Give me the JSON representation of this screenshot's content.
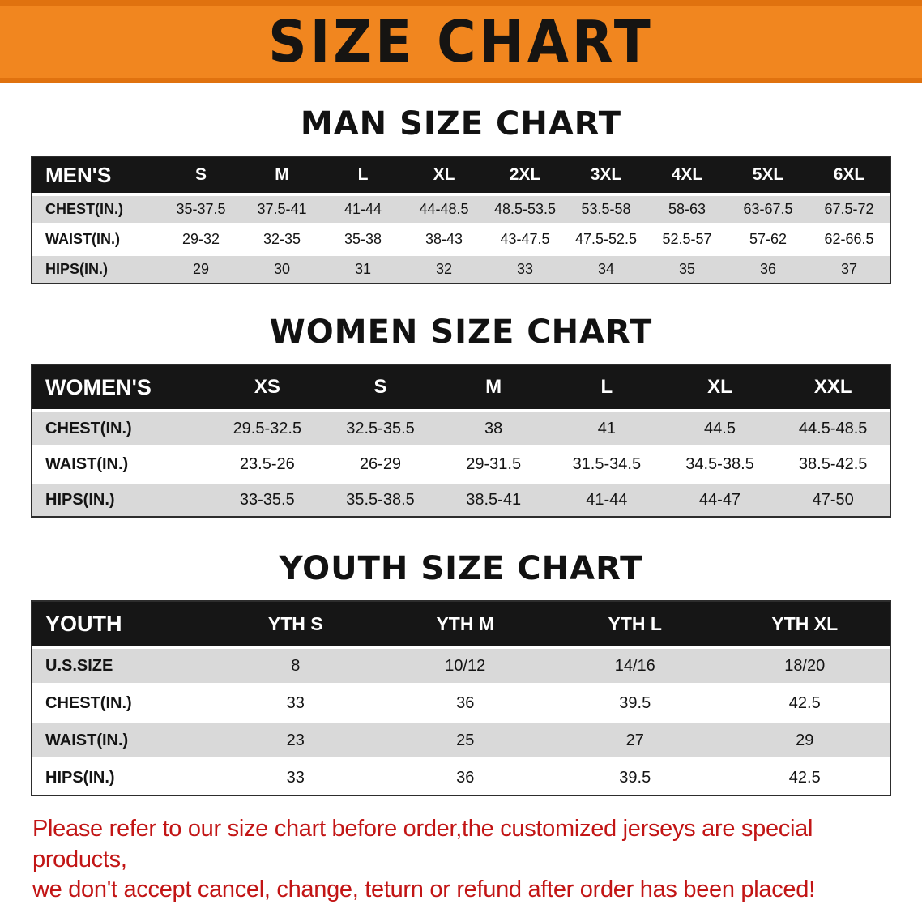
{
  "banner": {
    "title": "SIZE CHART"
  },
  "colors": {
    "banner-bg": "#f1861f",
    "banner-edge": "#e0720f",
    "header-bg": "#161616",
    "row-shade": "#d9d9d9",
    "disclaimer-color": "#c21515"
  },
  "sections": [
    {
      "heading": "MAN SIZE CHART",
      "table": {
        "header_label": "MEN'S",
        "columns": [
          "S",
          "M",
          "L",
          "XL",
          "2XL",
          "3XL",
          "4XL",
          "5XL",
          "6XL"
        ],
        "rows": [
          {
            "label": "CHEST(IN.)",
            "values": [
              "35-37.5",
              "37.5-41",
              "41-44",
              "44-48.5",
              "48.5-53.5",
              "53.5-58",
              "58-63",
              "63-67.5",
              "67.5-72"
            ]
          },
          {
            "label": "WAIST(IN.)",
            "values": [
              "29-32",
              "32-35",
              "35-38",
              "38-43",
              "43-47.5",
              "47.5-52.5",
              "52.5-57",
              "57-62",
              "62-66.5"
            ]
          },
          {
            "label": "HIPS(IN.)",
            "values": [
              "29",
              "30",
              "31",
              "32",
              "33",
              "34",
              "35",
              "36",
              "37"
            ]
          }
        ]
      }
    },
    {
      "heading": "WOMEN SIZE CHART",
      "table": {
        "header_label": "WOMEN'S",
        "columns": [
          "XS",
          "S",
          "M",
          "L",
          "XL",
          "XXL"
        ],
        "rows": [
          {
            "label": "CHEST(IN.)",
            "values": [
              "29.5-32.5",
              "32.5-35.5",
              "38",
              "41",
              "44.5",
              "44.5-48.5"
            ]
          },
          {
            "label": "WAIST(IN.)",
            "values": [
              "23.5-26",
              "26-29",
              "29-31.5",
              "31.5-34.5",
              "34.5-38.5",
              "38.5-42.5"
            ]
          },
          {
            "label": "HIPS(IN.)",
            "values": [
              "33-35.5",
              "35.5-38.5",
              "38.5-41",
              "41-44",
              "44-47",
              "47-50"
            ]
          }
        ]
      }
    },
    {
      "heading": "YOUTH SIZE CHART",
      "table": {
        "header_label": "YOUTH",
        "columns": [
          "YTH S",
          "YTH M",
          "YTH L",
          "YTH XL"
        ],
        "rows": [
          {
            "label": "U.S.SIZE",
            "values": [
              "8",
              "10/12",
              "14/16",
              "18/20"
            ]
          },
          {
            "label": "CHEST(IN.)",
            "values": [
              "33",
              "36",
              "39.5",
              "42.5"
            ]
          },
          {
            "label": "WAIST(IN.)",
            "values": [
              "23",
              "25",
              "27",
              "29"
            ]
          },
          {
            "label": "HIPS(IN.)",
            "values": [
              "33",
              "36",
              "39.5",
              "42.5"
            ]
          }
        ]
      }
    }
  ],
  "disclaimer": {
    "line1": "Please refer to our size chart before order,the customized jerseys are special products,",
    "line2": "we don't accept cancel, change, teturn or refund after order has been placed!"
  }
}
